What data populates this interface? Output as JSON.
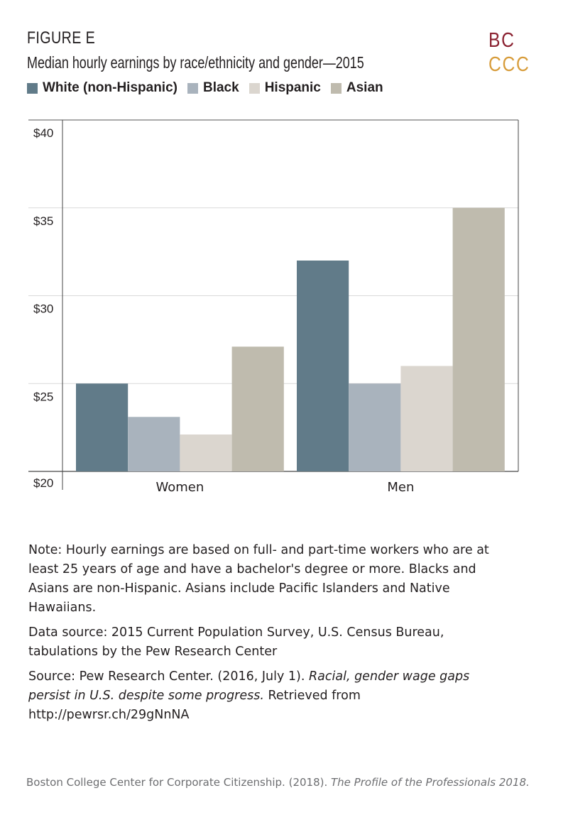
{
  "figure_label": "FIGURE E",
  "logo": {
    "line1": "BC",
    "line2": "CCC"
  },
  "colors": {
    "white": "#617b89",
    "black": "#a9b3bd",
    "hispanic": "#dbd6cf",
    "asian": "#bfbbae"
  },
  "chart_data": {
    "type": "bar",
    "title": "Median hourly earnings by race/ethnicity and gender—2015",
    "categories": [
      "Women",
      "Men"
    ],
    "series": [
      {
        "name": "White (non-Hispanic)",
        "values": [
          25,
          32
        ],
        "color": "#617b89"
      },
      {
        "name": "Black",
        "values": [
          23.1,
          25
        ],
        "color": "#a9b3bd"
      },
      {
        "name": "Hispanic",
        "values": [
          22.1,
          26
        ],
        "color": "#dbd6cf"
      },
      {
        "name": "Asian",
        "values": [
          27.1,
          35
        ],
        "color": "#bfbbae"
      }
    ],
    "yticks": [
      "$20",
      "$25",
      "$30",
      "$35",
      "$40"
    ],
    "ytick_values": [
      20,
      25,
      30,
      35,
      40
    ],
    "ylim": [
      20,
      40
    ],
    "xlabel": "",
    "ylabel": ""
  },
  "notes": {
    "note": "Note: Hourly earnings are based on full- and part-time workers who are at least 25 years of age and have a bachelor's degree or more. Blacks and Asians are non-Hispanic. Asians include Pacific Islanders and Native Hawaiians.",
    "data_source": "Data source: 2015 Current Population Survey, U.S. Census Bureau, tabulations by the Pew Research Center",
    "source_prefix": "Source: Pew Research Center. (2016, July 1). ",
    "source_title": "Racial, gender wage gaps persist in U.S. despite some progress.",
    "source_suffix": " Retrieved from http://pewrsr.ch/29gNnNA"
  },
  "footer": {
    "prefix": "Boston College Center for Corporate Citizenship. (2018). ",
    "title": "The Profile of the Professionals 2018."
  }
}
